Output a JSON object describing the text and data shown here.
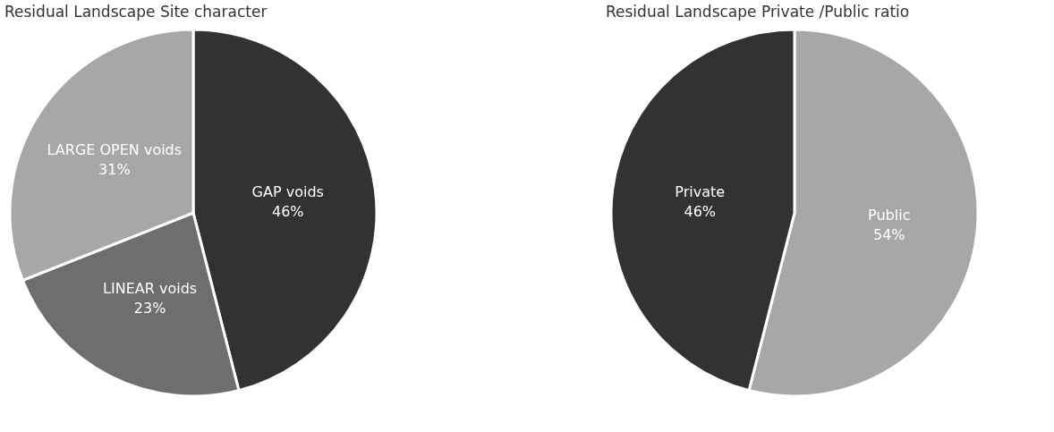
{
  "chart_data": [
    {
      "type": "pie",
      "title": "Residual Landscape Site character",
      "categories": [
        "GAP voids",
        "LINEAR voids",
        "LARGE OPEN voids"
      ],
      "values": [
        46,
        23,
        31
      ],
      "colors": [
        "#333132",
        "#6e6e6e",
        "#a7a7a7"
      ],
      "value_labels": [
        "46%",
        "23%",
        "31%"
      ],
      "legend": false
    },
    {
      "type": "pie",
      "title": "Residual Landscape Private /Public ratio",
      "categories": [
        "Public",
        "Private"
      ],
      "values": [
        54,
        46
      ],
      "colors": [
        "#a7a7a7",
        "#333132"
      ],
      "value_labels": [
        "54%",
        "46%"
      ],
      "legend": false
    }
  ]
}
